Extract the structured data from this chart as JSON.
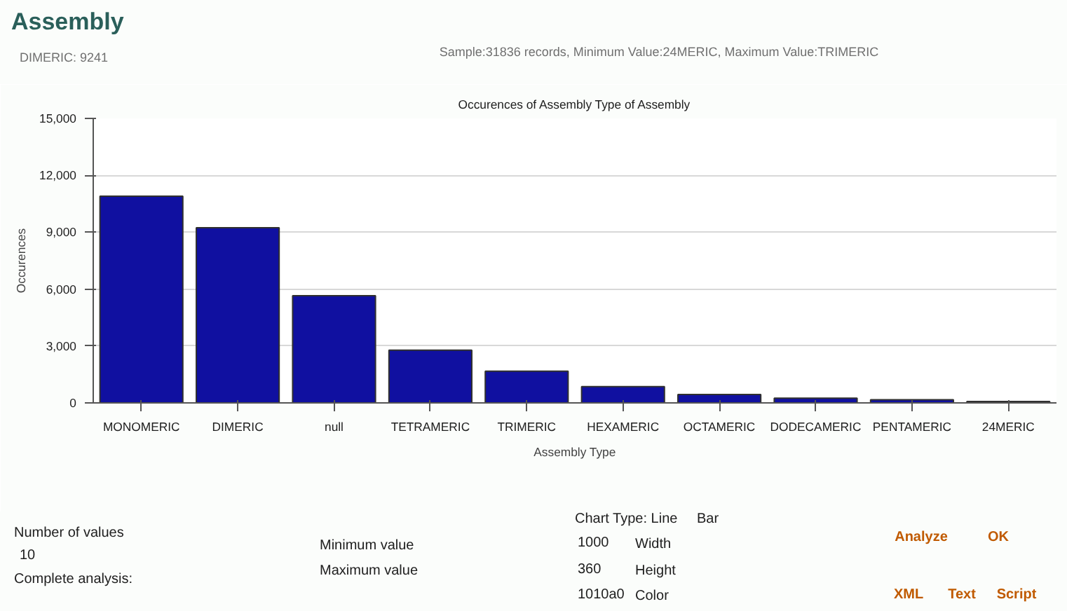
{
  "chart_data": {
    "type": "bar",
    "title": "Assembly",
    "subtitle": "Occurences of Assembly Type of Assembly",
    "xlabel": "Assembly Type",
    "ylabel": "Occurences",
    "categories": [
      "MONOMERIC",
      "DIMERIC",
      "null",
      "TETRAMERIC",
      "TRIMERIC",
      "HEXAMERIC",
      "OCTAMERIC",
      "DODECAMERIC",
      "PENTAMERIC",
      "24MERIC"
    ],
    "values": [
      10900,
      9241,
      5650,
      2780,
      1670,
      860,
      440,
      250,
      170,
      70
    ],
    "color": "#1010a0",
    "ylim": [
      0,
      15000
    ],
    "yticks": [
      {
        "value": 0,
        "label": "0"
      },
      {
        "value": 3000,
        "label": "3,000"
      },
      {
        "value": 6000,
        "label": "6,000"
      },
      {
        "value": 9000,
        "label": "9,000"
      },
      {
        "value": 12000,
        "label": "12,000"
      },
      {
        "value": 15000,
        "label": "15,000"
      }
    ],
    "grid": "y",
    "annotations": [
      "DIMERIC: 9241",
      "Sample:31836 records, Minimum Value:24MERIC, Maximum Value:TRIMERIC",
      "Number of values",
      "10",
      "Complete analysis:",
      "Minimum value",
      "Maximum value",
      "Chart Type: Line",
      "Bar",
      "1000",
      "Width",
      "360",
      "Height",
      "1010a0",
      "Color",
      "Analyze",
      "OK",
      "XML",
      "Text",
      "Script"
    ]
  }
}
